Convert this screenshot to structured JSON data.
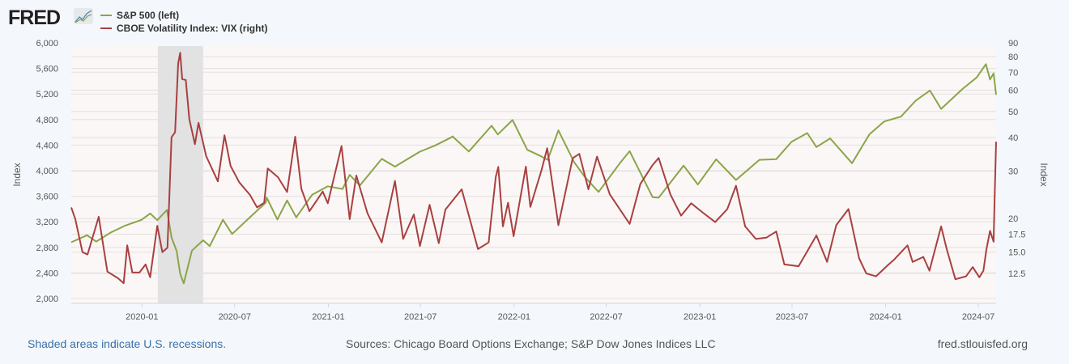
{
  "header": {
    "logo": "FRED",
    "logo_icon": "trend-chart-icon"
  },
  "legend": [
    {
      "label": "S&P 500 (left)",
      "color": "#8aa548"
    },
    {
      "label": "CBOE Volatility Index: VIX (right)",
      "color": "#a84040"
    }
  ],
  "footer": {
    "recession_note": "Shaded areas indicate U.S. recessions.",
    "sources": "Sources: Chicago Board Options Exchange; S&P Dow Jones Indices LLC",
    "site": "fred.stlouisfed.org"
  },
  "chart_data": {
    "type": "line",
    "title": "",
    "xlabel": "",
    "ylabel_left": "Index",
    "ylabel_right": "Index",
    "xlim": [
      "2019-08-15",
      "2024-08-05"
    ],
    "ylim_left": [
      2000,
      6000
    ],
    "ylim_right": [
      9.7,
      90
    ],
    "right_scale": "log",
    "grid": true,
    "legend_position": "top-left",
    "x_ticks": [
      {
        "date": "2020-01-01",
        "label": "2020-01"
      },
      {
        "date": "2020-07-01",
        "label": "2020-07"
      },
      {
        "date": "2021-01-01",
        "label": "2021-01"
      },
      {
        "date": "2021-07-01",
        "label": "2021-07"
      },
      {
        "date": "2022-01-01",
        "label": "2022-01"
      },
      {
        "date": "2022-07-01",
        "label": "2022-07"
      },
      {
        "date": "2023-01-01",
        "label": "2023-01"
      },
      {
        "date": "2023-07-01",
        "label": "2023-07"
      },
      {
        "date": "2024-01-01",
        "label": "2024-01"
      },
      {
        "date": "2024-07-01",
        "label": "2024-07"
      }
    ],
    "left_ticks": [
      "2,000",
      "2,400",
      "2,800",
      "3,200",
      "3,600",
      "4,000",
      "4,400",
      "4,800",
      "5,200",
      "5,600",
      "6,000"
    ],
    "left_tick_values": [
      2000,
      2400,
      2800,
      3200,
      3600,
      4000,
      4400,
      4800,
      5200,
      5600,
      6000
    ],
    "right_ticks": [
      "12.5",
      "15.0",
      "17.5",
      "20",
      "30",
      "40",
      "50",
      "60",
      "70",
      "80",
      "90"
    ],
    "right_tick_values": [
      12.5,
      15,
      17.5,
      20,
      30,
      40,
      50,
      60,
      70,
      80,
      90
    ],
    "recessions": [
      [
        "2020-02-01",
        "2020-04-30"
      ]
    ],
    "series": [
      {
        "name": "S&P 500 (left)",
        "axis": "left",
        "color": "#8aa548",
        "points": [
          [
            "2019-08-15",
            2880
          ],
          [
            "2019-09-15",
            2990
          ],
          [
            "2019-10-03",
            2890
          ],
          [
            "2019-10-31",
            3030
          ],
          [
            "2019-11-29",
            3140
          ],
          [
            "2019-12-31",
            3230
          ],
          [
            "2020-01-17",
            3330
          ],
          [
            "2020-01-31",
            3225
          ],
          [
            "2020-02-19",
            3386
          ],
          [
            "2020-02-28",
            2954
          ],
          [
            "2020-03-09",
            2746
          ],
          [
            "2020-03-16",
            2386
          ],
          [
            "2020-03-23",
            2237
          ],
          [
            "2020-04-08",
            2750
          ],
          [
            "2020-04-30",
            2912
          ],
          [
            "2020-05-13",
            2820
          ],
          [
            "2020-06-08",
            3232
          ],
          [
            "2020-06-26",
            3009
          ],
          [
            "2020-07-31",
            3271
          ],
          [
            "2020-08-31",
            3500
          ],
          [
            "2020-09-02",
            3580
          ],
          [
            "2020-09-23",
            3237
          ],
          [
            "2020-10-12",
            3534
          ],
          [
            "2020-10-30",
            3270
          ],
          [
            "2020-11-30",
            3622
          ],
          [
            "2020-12-31",
            3756
          ],
          [
            "2021-01-29",
            3714
          ],
          [
            "2021-02-12",
            3934
          ],
          [
            "2021-03-04",
            3768
          ],
          [
            "2021-04-16",
            4185
          ],
          [
            "2021-05-12",
            4063
          ],
          [
            "2021-06-30",
            4298
          ],
          [
            "2021-07-30",
            4395
          ],
          [
            "2021-08-31",
            4523
          ],
          [
            "2021-09-02",
            4537
          ],
          [
            "2021-10-04",
            4300
          ],
          [
            "2021-11-18",
            4704
          ],
          [
            "2021-11-30",
            4567
          ],
          [
            "2021-12-29",
            4793
          ],
          [
            "2022-01-27",
            4326
          ],
          [
            "2022-02-23",
            4225
          ],
          [
            "2022-03-08",
            4170
          ],
          [
            "2022-03-29",
            4631
          ],
          [
            "2022-04-29",
            4132
          ],
          [
            "2022-05-20",
            3901
          ],
          [
            "2022-06-16",
            3667
          ],
          [
            "2022-07-29",
            4130
          ],
          [
            "2022-08-16",
            4305
          ],
          [
            "2022-09-30",
            3586
          ],
          [
            "2022-10-12",
            3577
          ],
          [
            "2022-11-30",
            4080
          ],
          [
            "2022-12-28",
            3783
          ],
          [
            "2023-02-02",
            4179
          ],
          [
            "2023-03-13",
            3855
          ],
          [
            "2023-04-28",
            4169
          ],
          [
            "2023-05-31",
            4180
          ],
          [
            "2023-06-30",
            4450
          ],
          [
            "2023-07-31",
            4589
          ],
          [
            "2023-08-18",
            4370
          ],
          [
            "2023-09-14",
            4505
          ],
          [
            "2023-10-27",
            4117
          ],
          [
            "2023-11-30",
            4568
          ],
          [
            "2023-12-29",
            4770
          ],
          [
            "2024-01-31",
            4846
          ],
          [
            "2024-02-29",
            5096
          ],
          [
            "2024-03-28",
            5254
          ],
          [
            "2024-04-19",
            4967
          ],
          [
            "2024-05-31",
            5278
          ],
          [
            "2024-06-28",
            5460
          ],
          [
            "2024-07-16",
            5667
          ],
          [
            "2024-07-24",
            5427
          ],
          [
            "2024-07-31",
            5522
          ],
          [
            "2024-08-05",
            5186
          ]
        ]
      },
      {
        "name": "CBOE Volatility Index: VIX (right)",
        "axis": "right",
        "color": "#a84040",
        "points": [
          [
            "2019-08-15",
            22
          ],
          [
            "2019-08-23",
            19.9
          ],
          [
            "2019-09-06",
            15
          ],
          [
            "2019-09-16",
            14.7
          ],
          [
            "2019-10-08",
            20.3
          ],
          [
            "2019-10-25",
            12.7
          ],
          [
            "2019-11-15",
            12.0
          ],
          [
            "2019-11-26",
            11.5
          ],
          [
            "2019-12-03",
            15.9
          ],
          [
            "2019-12-13",
            12.6
          ],
          [
            "2019-12-27",
            12.6
          ],
          [
            "2020-01-08",
            13.5
          ],
          [
            "2020-01-17",
            12.1
          ],
          [
            "2020-01-31",
            18.8
          ],
          [
            "2020-02-10",
            15.0
          ],
          [
            "2020-02-20",
            15.6
          ],
          [
            "2020-02-28",
            40.1
          ],
          [
            "2020-03-06",
            41.9
          ],
          [
            "2020-03-12",
            75.5
          ],
          [
            "2020-03-16",
            82.7
          ],
          [
            "2020-03-20",
            66
          ],
          [
            "2020-03-27",
            65.5
          ],
          [
            "2020-04-03",
            46.8
          ],
          [
            "2020-04-14",
            37.8
          ],
          [
            "2020-04-21",
            45.4
          ],
          [
            "2020-05-06",
            34.1
          ],
          [
            "2020-05-29",
            27.5
          ],
          [
            "2020-06-11",
            40.8
          ],
          [
            "2020-06-23",
            31.4
          ],
          [
            "2020-07-10",
            27.3
          ],
          [
            "2020-07-31",
            24.5
          ],
          [
            "2020-08-14",
            22.0
          ],
          [
            "2020-08-28",
            22.9
          ],
          [
            "2020-09-04",
            30.7
          ],
          [
            "2020-09-24",
            28.5
          ],
          [
            "2020-10-12",
            25.1
          ],
          [
            "2020-10-28",
            40.3
          ],
          [
            "2020-11-09",
            25.8
          ],
          [
            "2020-11-25",
            21.3
          ],
          [
            "2020-12-21",
            25.2
          ],
          [
            "2020-12-31",
            22.8
          ],
          [
            "2021-01-27",
            37.2
          ],
          [
            "2021-02-12",
            19.9
          ],
          [
            "2021-02-25",
            28.9
          ],
          [
            "2021-03-19",
            20.9
          ],
          [
            "2021-04-16",
            16.3
          ],
          [
            "2021-05-12",
            27.6
          ],
          [
            "2021-05-28",
            16.8
          ],
          [
            "2021-06-18",
            20.7
          ],
          [
            "2021-06-30",
            15.8
          ],
          [
            "2021-07-19",
            22.5
          ],
          [
            "2021-08-06",
            16.2
          ],
          [
            "2021-08-19",
            21.6
          ],
          [
            "2021-09-20",
            25.7
          ],
          [
            "2021-10-22",
            15.4
          ],
          [
            "2021-11-12",
            16.3
          ],
          [
            "2021-11-26",
            28.6
          ],
          [
            "2021-12-01",
            31.1
          ],
          [
            "2021-12-10",
            18.7
          ],
          [
            "2021-12-20",
            22.9
          ],
          [
            "2021-12-31",
            17.2
          ],
          [
            "2022-01-24",
            31.2
          ],
          [
            "2022-02-02",
            22.1
          ],
          [
            "2022-02-24",
            30.3
          ],
          [
            "2022-03-07",
            36.5
          ],
          [
            "2022-03-29",
            18.9
          ],
          [
            "2022-04-26",
            33.5
          ],
          [
            "2022-05-09",
            34.8
          ],
          [
            "2022-05-27",
            25.7
          ],
          [
            "2022-06-13",
            34.0
          ],
          [
            "2022-07-08",
            24.6
          ],
          [
            "2022-08-16",
            19.1
          ],
          [
            "2022-09-06",
            26.9
          ],
          [
            "2022-09-30",
            31.6
          ],
          [
            "2022-10-12",
            33.6
          ],
          [
            "2022-11-04",
            24.6
          ],
          [
            "2022-11-25",
            20.5
          ],
          [
            "2022-12-15",
            22.8
          ],
          [
            "2023-01-06",
            21.1
          ],
          [
            "2023-01-31",
            19.4
          ],
          [
            "2023-02-24",
            21.7
          ],
          [
            "2023-03-13",
            26.5
          ],
          [
            "2023-03-31",
            18.7
          ],
          [
            "2023-04-21",
            16.8
          ],
          [
            "2023-05-12",
            17.0
          ],
          [
            "2023-05-31",
            17.9
          ],
          [
            "2023-06-16",
            13.5
          ],
          [
            "2023-07-14",
            13.3
          ],
          [
            "2023-08-18",
            17.3
          ],
          [
            "2023-09-08",
            13.8
          ],
          [
            "2023-09-26",
            18.9
          ],
          [
            "2023-10-20",
            21.7
          ],
          [
            "2023-11-10",
            14.2
          ],
          [
            "2023-11-24",
            12.5
          ],
          [
            "2023-12-13",
            12.2
          ],
          [
            "2024-01-05",
            13.4
          ],
          [
            "2024-01-18",
            14.1
          ],
          [
            "2024-02-13",
            15.9
          ],
          [
            "2024-02-23",
            13.8
          ],
          [
            "2024-03-15",
            14.4
          ],
          [
            "2024-03-27",
            12.8
          ],
          [
            "2024-04-19",
            18.7
          ],
          [
            "2024-04-30",
            15.4
          ],
          [
            "2024-05-17",
            11.9
          ],
          [
            "2024-06-07",
            12.2
          ],
          [
            "2024-06-20",
            13.2
          ],
          [
            "2024-07-03",
            12.1
          ],
          [
            "2024-07-11",
            12.8
          ],
          [
            "2024-07-17",
            15.4
          ],
          [
            "2024-07-24",
            18.0
          ],
          [
            "2024-07-31",
            16.4
          ],
          [
            "2024-08-02",
            23.4
          ],
          [
            "2024-08-05",
            38.6
          ]
        ]
      }
    ]
  }
}
